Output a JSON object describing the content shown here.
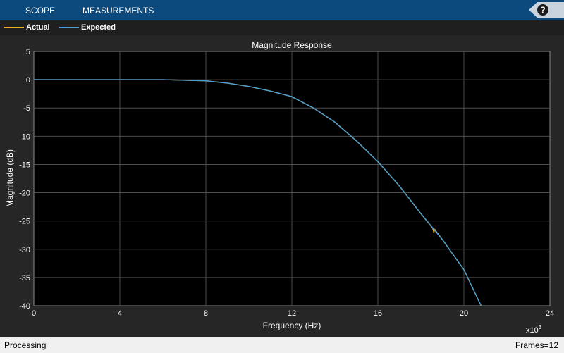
{
  "toolstrip": {
    "tabs": [
      "SCOPE",
      "MEASUREMENTS"
    ],
    "help_label": "?",
    "background": "#0c4a7e"
  },
  "legend": {
    "items": [
      {
        "label": "Actual",
        "color": "#edb120"
      },
      {
        "label": "Expected",
        "color": "#4a9fd6"
      }
    ]
  },
  "status": {
    "left": "Processing",
    "right": "Frames=12"
  },
  "chart_data": {
    "type": "line",
    "title": "Magnitude Response",
    "xlabel": "Frequency (Hz)",
    "ylabel": "Magnitude (dB)",
    "x_exponent_label": "x10",
    "x_exponent_power": "3",
    "xlim": [
      0,
      24000
    ],
    "ylim": [
      -40,
      5
    ],
    "x_ticks": [
      0,
      4000,
      8000,
      12000,
      16000,
      20000,
      24000
    ],
    "x_tick_labels": [
      "0",
      "4",
      "8",
      "12",
      "16",
      "20",
      "24"
    ],
    "y_ticks": [
      5,
      0,
      -5,
      -10,
      -15,
      -20,
      -25,
      -30,
      -35,
      -40
    ],
    "y_tick_labels": [
      "5",
      "0",
      "-5",
      "-10",
      "-15",
      "-20",
      "-25",
      "-30",
      "-35",
      "-40"
    ],
    "grid": true,
    "legend_position": "top-left",
    "series": [
      {
        "name": "Actual",
        "color": "#edb120",
        "x": [
          0,
          2000,
          4000,
          6000,
          8000,
          9000,
          10000,
          11000,
          12000,
          13000,
          14000,
          15000,
          16000,
          17000,
          18000,
          18550,
          18600,
          18650,
          18700,
          19000,
          20000,
          20800
        ],
        "y": [
          0,
          0,
          0,
          0,
          -0.2,
          -0.6,
          -1.2,
          -2.0,
          -3.0,
          -5.0,
          -7.5,
          -10.8,
          -14.5,
          -18.8,
          -23.7,
          -26.3,
          -27.0,
          -26.5,
          -26.8,
          -28.3,
          -33.6,
          -40
        ]
      },
      {
        "name": "Expected",
        "color": "#4a9fd6",
        "x": [
          0,
          2000,
          4000,
          6000,
          8000,
          9000,
          10000,
          11000,
          12000,
          13000,
          14000,
          15000,
          16000,
          17000,
          18000,
          19000,
          20000,
          20800
        ],
        "y": [
          0,
          0,
          0,
          0,
          -0.2,
          -0.6,
          -1.2,
          -2.0,
          -3.0,
          -5.0,
          -7.5,
          -10.8,
          -14.5,
          -18.8,
          -23.7,
          -28.3,
          -33.6,
          -40
        ]
      }
    ]
  }
}
